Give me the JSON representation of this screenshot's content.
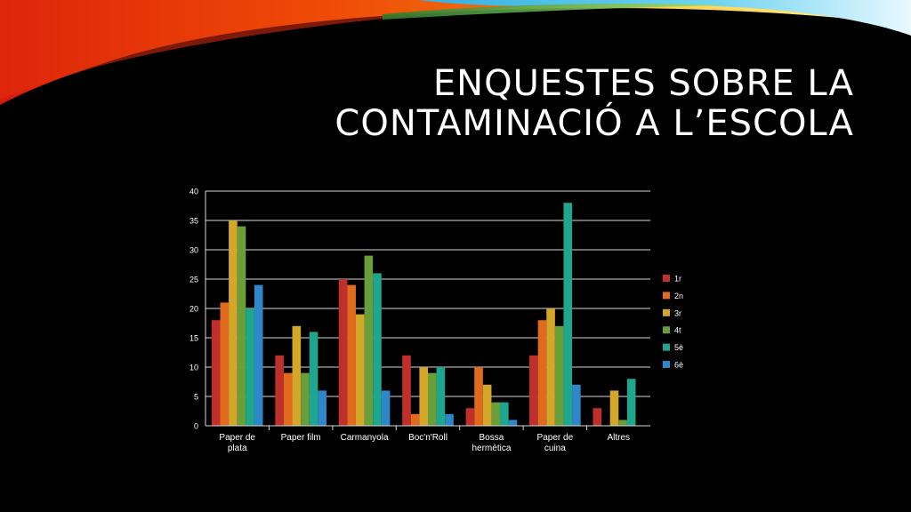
{
  "slide": {
    "title_line1": "ENQUESTES SOBRE LA",
    "title_line2": "CONTAMINACIÓ A L’ESCOLA"
  },
  "chart_data": {
    "type": "bar",
    "title": "",
    "xlabel": "",
    "ylabel": "",
    "ylim": [
      0,
      40
    ],
    "yticks": [
      0,
      5,
      10,
      15,
      20,
      25,
      30,
      35,
      40
    ],
    "categories": [
      [
        "Paper de",
        "plata"
      ],
      [
        "Paper film"
      ],
      [
        "Carmanyola"
      ],
      [
        "Boc'n'Roll"
      ],
      [
        "Bossa",
        "hermètica"
      ],
      [
        "Paper de",
        "cuina"
      ],
      [
        "Altres"
      ]
    ],
    "series": [
      {
        "name": "1r",
        "color": "#c0302a",
        "values": [
          18,
          12,
          25,
          12,
          3,
          12,
          3
        ]
      },
      {
        "name": "2n",
        "color": "#e06a1e",
        "values": [
          21,
          9,
          24,
          2,
          10,
          18,
          0
        ]
      },
      {
        "name": "3r",
        "color": "#d4a72b",
        "values": [
          35,
          17,
          19,
          10,
          7,
          20,
          6
        ]
      },
      {
        "name": "4t",
        "color": "#6a9e3a",
        "values": [
          34,
          9,
          29,
          9,
          4,
          17,
          1
        ]
      },
      {
        "name": "5è",
        "color": "#1ea68e",
        "values": [
          20,
          16,
          26,
          10,
          4,
          38,
          8
        ]
      },
      {
        "name": "6è",
        "color": "#2f86c8",
        "values": [
          24,
          6,
          6,
          2,
          1,
          7,
          0
        ]
      }
    ],
    "legend_position": "right",
    "grid": true
  }
}
